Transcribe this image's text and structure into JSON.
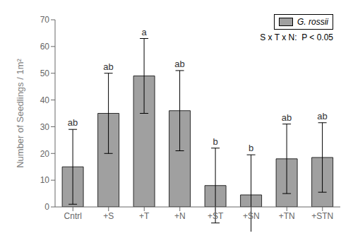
{
  "chart_data": {
    "type": "bar",
    "categories": [
      "Cntrl",
      "+S",
      "+T",
      "+N",
      "+ST",
      "+SN",
      "+TN",
      "+STN"
    ],
    "series": [
      {
        "name": "G. rossii",
        "color": "#a0a0a0",
        "values": [
          15,
          35,
          49,
          36,
          8,
          4.5,
          18,
          18.5
        ],
        "errors": [
          14,
          15,
          14,
          15,
          14,
          15,
          13,
          13
        ]
      }
    ],
    "letters": [
      "ab",
      "ab",
      "a",
      "ab",
      "b",
      "b",
      "ab",
      "ab"
    ],
    "ylabel": "Number of Seedlings / 1m²",
    "ylim": [
      0,
      70
    ],
    "yticks": [
      0,
      10,
      20,
      30,
      40,
      50,
      60,
      70
    ],
    "legend": "upper right",
    "annotations": [
      "S x T x N:  P < 0.05"
    ],
    "grid": false
  }
}
